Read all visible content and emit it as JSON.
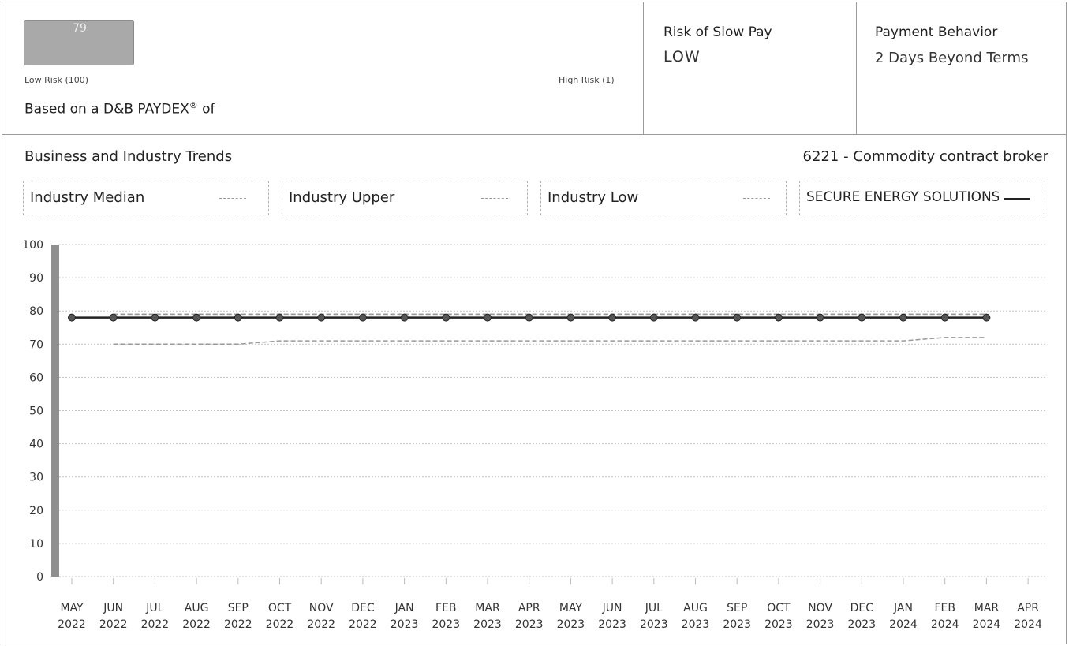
{
  "score": {
    "value": "79",
    "low_risk_label": "Low Risk (100)",
    "high_risk_label": "High Risk (1)",
    "basis_text": "Based on a D&B PAYDEX",
    "basis_mark": "®",
    "basis_suffix": " of"
  },
  "slow_pay": {
    "title": "Risk of Slow Pay",
    "value": "LOW"
  },
  "payment_behavior": {
    "title": "Payment Behavior",
    "value": "2 Days Beyond Terms"
  },
  "trends": {
    "title": "Business and Industry Trends",
    "industry_code": "6221 - Commodity contract broker"
  },
  "legend": [
    {
      "label": "Industry Median",
      "style": "dashed"
    },
    {
      "label": "Industry Upper",
      "style": "dashed"
    },
    {
      "label": "Industry Low",
      "style": "dashed"
    },
    {
      "label": "SECURE ENERGY SOLUTIONS",
      "style": "solid"
    }
  ],
  "colors": {
    "border": "#9a9a9a",
    "badge": "#a9a9a9",
    "company_line": "#222222",
    "industry_line": "#9a9a9a",
    "scale_bar": "#8f8f8f"
  },
  "chart_data": {
    "type": "line",
    "ylim": [
      0,
      100
    ],
    "yticks": [
      0,
      10,
      20,
      30,
      40,
      50,
      60,
      70,
      80,
      90,
      100
    ],
    "grid": true,
    "x": [
      [
        "MAY",
        "2022"
      ],
      [
        "JUN",
        "2022"
      ],
      [
        "JUL",
        "2022"
      ],
      [
        "AUG",
        "2022"
      ],
      [
        "SEP",
        "2022"
      ],
      [
        "OCT",
        "2022"
      ],
      [
        "NOV",
        "2022"
      ],
      [
        "DEC",
        "2022"
      ],
      [
        "JAN",
        "2023"
      ],
      [
        "FEB",
        "2023"
      ],
      [
        "MAR",
        "2023"
      ],
      [
        "APR",
        "2023"
      ],
      [
        "MAY",
        "2023"
      ],
      [
        "JUN",
        "2023"
      ],
      [
        "JUL",
        "2023"
      ],
      [
        "AUG",
        "2023"
      ],
      [
        "SEP",
        "2023"
      ],
      [
        "OCT",
        "2023"
      ],
      [
        "NOV",
        "2023"
      ],
      [
        "DEC",
        "2023"
      ],
      [
        "JAN",
        "2024"
      ],
      [
        "FEB",
        "2024"
      ],
      [
        "MAR",
        "2024"
      ],
      [
        "APR",
        "2024"
      ]
    ],
    "series": [
      {
        "name": "SECURE ENERGY SOLUTIONS",
        "style": "solid",
        "markers": true,
        "values": [
          78,
          78,
          78,
          78,
          78,
          78,
          78,
          78,
          78,
          78,
          78,
          78,
          78,
          78,
          78,
          78,
          78,
          78,
          78,
          78,
          78,
          78,
          78,
          null
        ]
      },
      {
        "name": "Industry Upper",
        "style": "dashed",
        "markers": false,
        "values": [
          null,
          79,
          79,
          79,
          79,
          79,
          79,
          79,
          79,
          79,
          79,
          79,
          79,
          79,
          79,
          79,
          79,
          79,
          79,
          79,
          79,
          79,
          79,
          null
        ]
      },
      {
        "name": "Industry Median",
        "style": "dashed",
        "markers": false,
        "values": [
          null,
          79,
          79,
          79,
          79,
          79,
          79,
          79,
          79,
          79,
          79,
          79,
          79,
          79,
          79,
          79,
          79,
          79,
          79,
          79,
          79,
          79,
          79,
          null
        ]
      },
      {
        "name": "Industry Low",
        "style": "dashed",
        "markers": false,
        "values": [
          null,
          70,
          70,
          70,
          70,
          71,
          71,
          71,
          71,
          71,
          71,
          71,
          71,
          71,
          71,
          71,
          71,
          71,
          71,
          71,
          71,
          72,
          72,
          null
        ]
      }
    ]
  }
}
